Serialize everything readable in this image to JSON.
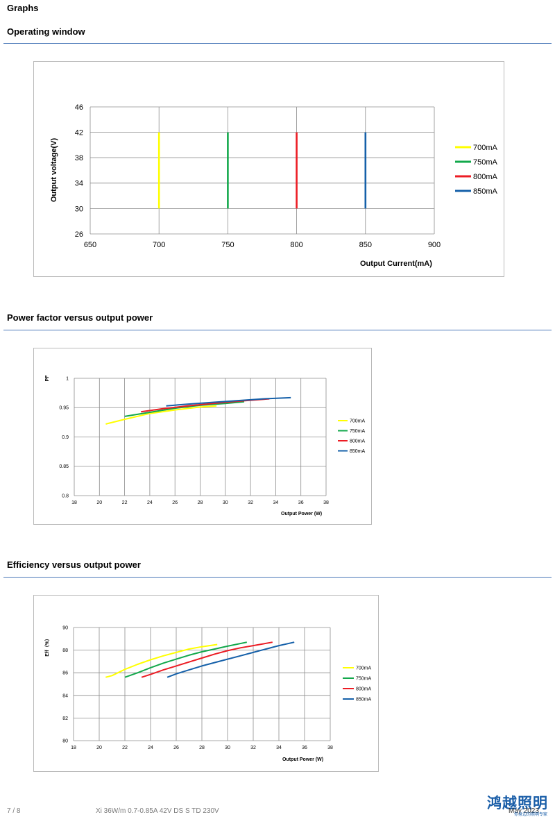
{
  "page": {
    "section_title": "Graphs",
    "headings": {
      "operating_window": "Operating window",
      "pf": "Power factor versus output power",
      "eff": "Efficiency versus output power"
    },
    "footer": {
      "page": "7 / 8",
      "doc": "Xi 36W/m 0.7-0.85A 42V DS S TD 230V",
      "date": "May 2023",
      "logo_text": "鸿越照明",
      "logo_sub": "你身边的照明专家"
    }
  },
  "colors": {
    "700mA": "#ffff00",
    "750mA": "#12a84b",
    "800mA": "#ec1c24",
    "850mA": "#1560a9"
  },
  "chart_data": [
    {
      "type": "line",
      "title": "",
      "xlabel": "Output Current(mA)",
      "ylabel": "Output voltage(V)",
      "xlim": [
        650,
        900
      ],
      "ylim": [
        26,
        46
      ],
      "x_ticks": [
        "650",
        "700",
        "750",
        "800",
        "850",
        "900"
      ],
      "y_ticks": [
        "26",
        "30",
        "34",
        "38",
        "42",
        "46"
      ],
      "grid": true,
      "legend_position": "right",
      "series": [
        {
          "name": "700mA",
          "x": [
            700,
            700
          ],
          "y": [
            30,
            42
          ]
        },
        {
          "name": "750mA",
          "x": [
            750,
            750
          ],
          "y": [
            30,
            42
          ]
        },
        {
          "name": "800mA",
          "x": [
            800,
            800
          ],
          "y": [
            30,
            42
          ]
        },
        {
          "name": "850mA",
          "x": [
            850,
            850
          ],
          "y": [
            30,
            42
          ]
        }
      ]
    },
    {
      "type": "line",
      "title": "",
      "xlabel": "Output Power (W)",
      "ylabel": "PF",
      "xlim": [
        18,
        38
      ],
      "ylim": [
        0.8,
        1
      ],
      "x_ticks": [
        "18",
        "20",
        "22",
        "24",
        "26",
        "28",
        "30",
        "32",
        "34",
        "36",
        "38"
      ],
      "y_ticks": [
        "0.8",
        "0.85",
        "0.9",
        "0.95",
        "1"
      ],
      "grid": true,
      "legend_position": "right",
      "series": [
        {
          "name": "700mA",
          "x": [
            20.5,
            22,
            24,
            26,
            28,
            29.3
          ],
          "y": [
            0.922,
            0.93,
            0.94,
            0.946,
            0.951,
            0.953
          ]
        },
        {
          "name": "750mA",
          "x": [
            22,
            24,
            26,
            28,
            30,
            31.5
          ],
          "y": [
            0.935,
            0.942,
            0.949,
            0.954,
            0.957,
            0.96
          ]
        },
        {
          "name": "800mA",
          "x": [
            23.3,
            25,
            27,
            29,
            31,
            33.5
          ],
          "y": [
            0.943,
            0.948,
            0.953,
            0.957,
            0.961,
            0.965
          ]
        },
        {
          "name": "850mA",
          "x": [
            25.3,
            27,
            29,
            31,
            33,
            35.2
          ],
          "y": [
            0.953,
            0.956,
            0.959,
            0.962,
            0.965,
            0.967
          ]
        }
      ]
    },
    {
      "type": "line",
      "title": "",
      "xlabel": "Output Power (W)",
      "ylabel": "Eff（%）",
      "xlim": [
        18,
        38
      ],
      "ylim": [
        80,
        90
      ],
      "x_ticks": [
        "18",
        "20",
        "22",
        "24",
        "26",
        "28",
        "30",
        "32",
        "34",
        "36",
        "38"
      ],
      "y_ticks": [
        "80",
        "82",
        "84",
        "86",
        "88",
        "90"
      ],
      "grid": true,
      "legend_position": "right",
      "series": [
        {
          "name": "700mA",
          "x": [
            20.5,
            21,
            22,
            23,
            24,
            25,
            26,
            27,
            28,
            29.2
          ],
          "y": [
            85.6,
            85.75,
            86.3,
            86.75,
            87.15,
            87.5,
            87.8,
            88.1,
            88.3,
            88.5
          ]
        },
        {
          "name": "750mA",
          "x": [
            22,
            23,
            24,
            25,
            26,
            27,
            28,
            29,
            30,
            31.5
          ],
          "y": [
            85.6,
            86.0,
            86.45,
            86.85,
            87.2,
            87.55,
            87.85,
            88.1,
            88.35,
            88.7
          ]
        },
        {
          "name": "800mA",
          "x": [
            23.3,
            24,
            25,
            26,
            27,
            28,
            29,
            30,
            31,
            32,
            33.5
          ],
          "y": [
            85.6,
            85.85,
            86.25,
            86.6,
            86.95,
            87.3,
            87.65,
            87.95,
            88.2,
            88.4,
            88.7
          ]
        },
        {
          "name": "850mA",
          "x": [
            25.3,
            26,
            27,
            28,
            29,
            30,
            31,
            32,
            33,
            34,
            35.2
          ],
          "y": [
            85.6,
            85.9,
            86.25,
            86.6,
            86.9,
            87.2,
            87.5,
            87.8,
            88.1,
            88.4,
            88.7
          ]
        }
      ]
    }
  ]
}
